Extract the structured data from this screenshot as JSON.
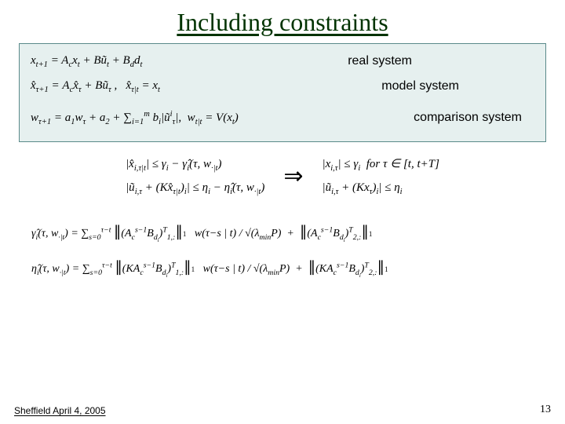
{
  "title": "Including constraints",
  "systems": {
    "real": {
      "label": "real system",
      "eq_html": "x<sub>t+1</sub> = A<sub>c</sub>x<sub>t</sub> + B&#361;<sub>t</sub> + B<sub>d</sub>d<sub>t</sub>"
    },
    "model": {
      "label": "model system",
      "eq_html": "&#x0078;&#770;<sub>&#964;+1</sub> = A<sub>c</sub>x&#770;<sub>&#964;</sub> + B&#361;<sub>&#964;</sub>&nbsp;,&nbsp;&nbsp;&nbsp;x&#770;<sub>&#964;|t</sub> = x<sub>t</sub>"
    },
    "comp": {
      "label": "comparison system",
      "eq_html": "w<sub>&#964;+1</sub> = a<sub>1</sub>w<sub>&#964;</sub> + a<sub>2</sub> + &#8721;<sub>i=1</sub><sup>m</sup> b<sub>i</sub>|&#361;<sup>i</sup><sub>&#964;</sub>|,&nbsp;&nbsp;w<sub>t|t</sub> = V(x<sub>t</sub>)"
    }
  },
  "implication": {
    "left": {
      "line1_html": "|x&#770;<sub>i,&#964;|t</sub>| &#8804; &#947;<sub>i</sub> &#8722; &#947;&#770;<sub>i</sub>(&#964;, w<sub>&middot;|t</sub>)",
      "line2_html": "|&#361;<sub>i,&#964;</sub> + (Kx&#770;<sub>&#964;|t</sub>)<sub>i</sub>| &#8804; &#951;<sub>i</sub> &#8722; &#951;&#770;<sub>i</sub>(&#964;, w<sub>&middot;|t</sub>)"
    },
    "arrow": "⇒",
    "right": {
      "line1_html": "|x<sub>i,&#964;</sub>| &#8804; &#947;<sub>i</sub>&nbsp;&nbsp;for &#964; &#8712; [t, t+T]",
      "line2_html": "|&#361;<sub>i,&#964;</sub> + (Kx<sub>&#964;</sub>)<sub>i</sub>| &#8804; &#951;<sub>i</sub>"
    }
  },
  "defs": {
    "gamma_html": "&#947;&#770;<sub>i</sub>(&#964;, w<sub>&middot;|t</sub>) = &#8721;<sub>s=0</sub><sup>&#964;&#8722;t</sup> <span class=\"bigabs\">&#8741;</span>(A<sub>c</sub><sup>s&#8722;1</sup>B<sub>d<sub>i</sub></sub>)<sup>T</sup><sub>1,:</sub><span class=\"bigabs\">&#8741;</span><span class=\"normsub\">1</span> &nbsp; w(&#964;&#8722;s | t) / &#8730;(&#955;<sub>min</sub>P) &nbsp;+&nbsp; <span class=\"bigabs\">&#8741;</span>(A<sub>c</sub><sup>s&#8722;1</sup>B<sub>d<sub>i</sub></sub>)<sup>T</sup><sub>2,:</sub><span class=\"bigabs\">&#8741;</span><span class=\"normsub\">1</span>",
    "eta_html": "&#951;&#770;<sub>i</sub>(&#964;, w<sub>&middot;|t</sub>) = &#8721;<sub>s=0</sub><sup>&#964;&#8722;t</sup> <span class=\"bigabs\">&#8741;</span>(KA<sub>c</sub><sup>s&#8722;1</sup>B<sub>d<sub>i</sub></sub>)<sup>T</sup><sub>1,:</sub><span class=\"bigabs\">&#8741;</span><span class=\"normsub\">1</span> &nbsp; w(&#964;&#8722;s | t) / &#8730;(&#955;<sub>min</sub>P) &nbsp;+&nbsp; <span class=\"bigabs\">&#8741;</span>(KA<sub>c</sub><sup>s&#8722;1</sup>B<sub>d<sub>i</sub></sub>)<sup>T</sup><sub>2,:</sub><span class=\"bigabs\">&#8741;</span><span class=\"normsub\">1</span>"
  },
  "footer": {
    "left": "Sheffield April 4, 2005",
    "page": "13"
  }
}
